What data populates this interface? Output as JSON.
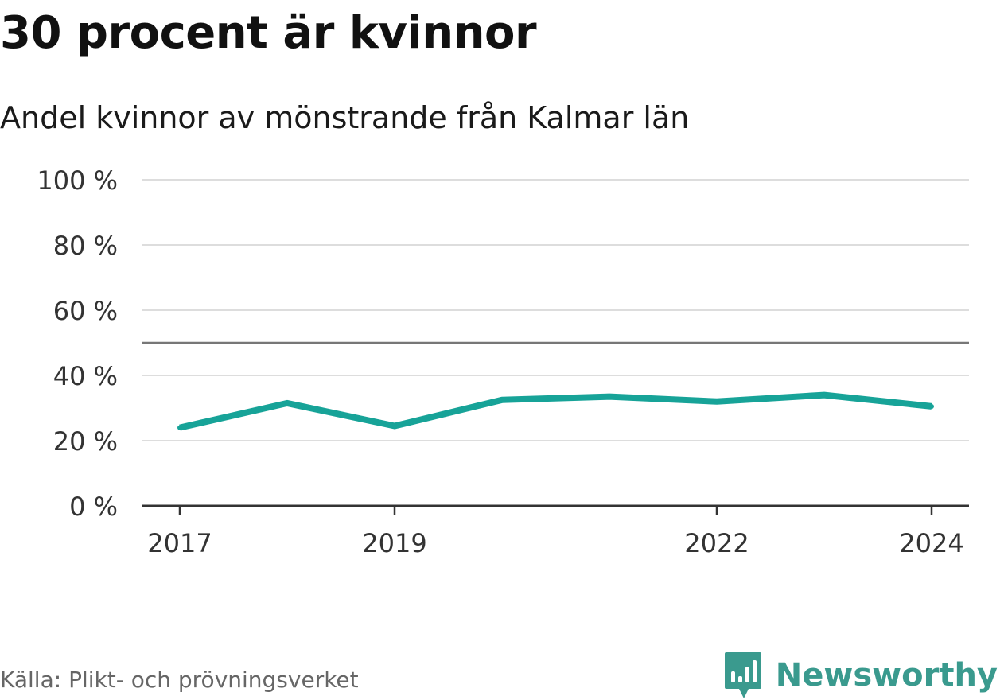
{
  "header": {
    "title": "30 procent är kvinnor",
    "subtitle": "Andel kvinnor av mönstrande från Kalmar län"
  },
  "footer": {
    "source": "Källa: Plikt- och prövningsverket",
    "brand": "Newsworthy",
    "brand_icon": "newsworthy-logo-icon"
  },
  "colors": {
    "line": "#17a398",
    "grid": "#dddddd",
    "reference": "#777777",
    "axis": "#333333",
    "brand": "#3a9a8e"
  },
  "chart_data": {
    "type": "line",
    "title": "30 procent är kvinnor",
    "subtitle": "Andel kvinnor av mönstrande från Kalmar län",
    "x": [
      2017,
      2018,
      2019,
      2020,
      2021,
      2022,
      2023,
      2024
    ],
    "values": [
      24,
      31.5,
      24.5,
      32.5,
      33.5,
      32,
      34,
      30.5
    ],
    "unit": "%",
    "ylim": [
      0,
      100
    ],
    "y_ticks": [
      0,
      20,
      40,
      60,
      80,
      100
    ],
    "y_tick_labels": [
      "0 %",
      "20 %",
      "40 %",
      "60 %",
      "80 %",
      "100 %"
    ],
    "x_ticks": [
      2017,
      2019,
      2022,
      2024
    ],
    "x_tick_labels": [
      "2017",
      "2019",
      "2022",
      "2024"
    ],
    "reference_line": 50,
    "grid": true,
    "legend": "none"
  }
}
